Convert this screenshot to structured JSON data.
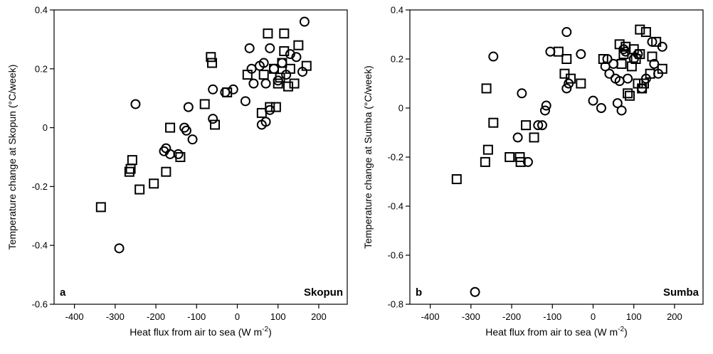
{
  "chart_data": [
    {
      "type": "scatter",
      "panel_letter": "a",
      "panel_name": "Skopun",
      "xlabel": "Heat flux from air to sea (W m",
      "xlabel_sup": "-2",
      "xlabel_close": ")",
      "ylabel": "Temperature change at Skopun (°C/week)",
      "xlim": [
        -450,
        270
      ],
      "ylim": [
        -0.6,
        0.4
      ],
      "xticks": [
        -400,
        -300,
        -200,
        -100,
        0,
        100,
        200
      ],
      "yticks": [
        -0.6,
        -0.4,
        -0.2,
        0,
        0.2,
        0.4
      ],
      "ytick_labels": [
        "-0.6",
        "-0.4",
        "-0.2",
        "0",
        "0.2",
        "0.4"
      ],
      "series": [
        {
          "marker": "circle",
          "points": [
            [
              -290,
              -0.41
            ],
            [
              -250,
              0.08
            ],
            [
              -180,
              -0.08
            ],
            [
              -175,
              -0.07
            ],
            [
              -165,
              -0.09
            ],
            [
              -145,
              -0.09
            ],
            [
              -130,
              0
            ],
            [
              -125,
              -0.01
            ],
            [
              -120,
              0.07
            ],
            [
              -110,
              -0.04
            ],
            [
              -60,
              0.13
            ],
            [
              -60,
              0.03
            ],
            [
              -30,
              0.12
            ],
            [
              -10,
              0.13
            ],
            [
              20,
              0.09
            ],
            [
              30,
              0.27
            ],
            [
              35,
              0.2
            ],
            [
              40,
              0.15
            ],
            [
              55,
              0.21
            ],
            [
              60,
              0.01
            ],
            [
              65,
              0.22
            ],
            [
              70,
              0.02
            ],
            [
              70,
              0.15
            ],
            [
              80,
              0.27
            ],
            [
              80,
              0.06
            ],
            [
              90,
              0.2
            ],
            [
              100,
              0.16
            ],
            [
              110,
              0.22
            ],
            [
              120,
              0.18
            ],
            [
              130,
              0.25
            ],
            [
              145,
              0.24
            ],
            [
              160,
              0.19
            ],
            [
              165,
              0.36
            ]
          ]
        },
        {
          "marker": "square",
          "points": [
            [
              -335,
              -0.27
            ],
            [
              -265,
              -0.15
            ],
            [
              -262,
              -0.14
            ],
            [
              -258,
              -0.11
            ],
            [
              -240,
              -0.21
            ],
            [
              -205,
              -0.19
            ],
            [
              -175,
              -0.15
            ],
            [
              -165,
              0
            ],
            [
              -140,
              -0.1
            ],
            [
              -80,
              0.08
            ],
            [
              -65,
              0.24
            ],
            [
              -62,
              0.22
            ],
            [
              -55,
              0.01
            ],
            [
              -25,
              0.12
            ],
            [
              25,
              0.18
            ],
            [
              60,
              0.05
            ],
            [
              65,
              0.18
            ],
            [
              75,
              0.32
            ],
            [
              80,
              0.07
            ],
            [
              90,
              0.2
            ],
            [
              95,
              0.07
            ],
            [
              100,
              0.15
            ],
            [
              105,
              0.17
            ],
            [
              110,
              0.22
            ],
            [
              115,
              0.26
            ],
            [
              115,
              0.32
            ],
            [
              125,
              0.14
            ],
            [
              130,
              0.2
            ],
            [
              140,
              0.15
            ],
            [
              150,
              0.28
            ],
            [
              170,
              0.21
            ]
          ]
        }
      ]
    },
    {
      "type": "scatter",
      "panel_letter": "b",
      "panel_name": "Sumba",
      "xlabel": "Heat flux from air to sea (W m",
      "xlabel_sup": "-2",
      "xlabel_close": ")",
      "ylabel": "Temperature change at Sumba (°C/week)",
      "xlim": [
        -450,
        270
      ],
      "ylim": [
        -0.8,
        0.4
      ],
      "xticks": [
        -400,
        -300,
        -200,
        -100,
        0,
        100,
        200
      ],
      "yticks": [
        -0.8,
        -0.6,
        -0.4,
        -0.2,
        0,
        0.2,
        0.4
      ],
      "ytick_labels": [
        "-0.8",
        "-0.6",
        "-0.4",
        "-0.2",
        "0",
        "0.2",
        "0.4"
      ],
      "series": [
        {
          "marker": "circle",
          "points": [
            [
              -290,
              -0.75
            ],
            [
              -245,
              0.21
            ],
            [
              -185,
              -0.12
            ],
            [
              -175,
              0.06
            ],
            [
              -160,
              -0.22
            ],
            [
              -135,
              -0.07
            ],
            [
              -125,
              -0.07
            ],
            [
              -118,
              -0.01
            ],
            [
              -115,
              0.01
            ],
            [
              -105,
              0.23
            ],
            [
              -65,
              0.31
            ],
            [
              -65,
              0.08
            ],
            [
              -60,
              0.1
            ],
            [
              -30,
              0.22
            ],
            [
              0,
              0.03
            ],
            [
              20,
              0
            ],
            [
              30,
              0.17
            ],
            [
              35,
              0.2
            ],
            [
              40,
              0.14
            ],
            [
              50,
              0.18
            ],
            [
              55,
              0.12
            ],
            [
              60,
              0.02
            ],
            [
              65,
              0.11
            ],
            [
              70,
              -0.01
            ],
            [
              75,
              0.24
            ],
            [
              80,
              0.23
            ],
            [
              85,
              0.12
            ],
            [
              100,
              0.2
            ],
            [
              110,
              0.22
            ],
            [
              120,
              0.08
            ],
            [
              130,
              0.12
            ],
            [
              145,
              0.27
            ],
            [
              150,
              0.18
            ],
            [
              160,
              0.14
            ],
            [
              170,
              0.25
            ]
          ]
        },
        {
          "marker": "square",
          "points": [
            [
              -335,
              -0.29
            ],
            [
              -265,
              -0.22
            ],
            [
              -262,
              0.08
            ],
            [
              -258,
              -0.17
            ],
            [
              -245,
              -0.06
            ],
            [
              -205,
              -0.2
            ],
            [
              -180,
              -0.2
            ],
            [
              -178,
              -0.22
            ],
            [
              -165,
              -0.07
            ],
            [
              -145,
              -0.12
            ],
            [
              -85,
              0.23
            ],
            [
              -70,
              0.14
            ],
            [
              -65,
              0.2
            ],
            [
              -55,
              0.12
            ],
            [
              -30,
              0.1
            ],
            [
              25,
              0.2
            ],
            [
              65,
              0.26
            ],
            [
              70,
              0.18
            ],
            [
              75,
              0.22
            ],
            [
              80,
              0.25
            ],
            [
              85,
              0.06
            ],
            [
              90,
              0.05
            ],
            [
              95,
              0.17
            ],
            [
              100,
              0.24
            ],
            [
              105,
              0.2
            ],
            [
              110,
              0.1
            ],
            [
              115,
              0.22
            ],
            [
              115,
              0.32
            ],
            [
              120,
              0.08
            ],
            [
              125,
              0.1
            ],
            [
              130,
              0.31
            ],
            [
              140,
              0.14
            ],
            [
              145,
              0.21
            ],
            [
              155,
              0.27
            ],
            [
              170,
              0.16
            ]
          ]
        }
      ]
    }
  ]
}
